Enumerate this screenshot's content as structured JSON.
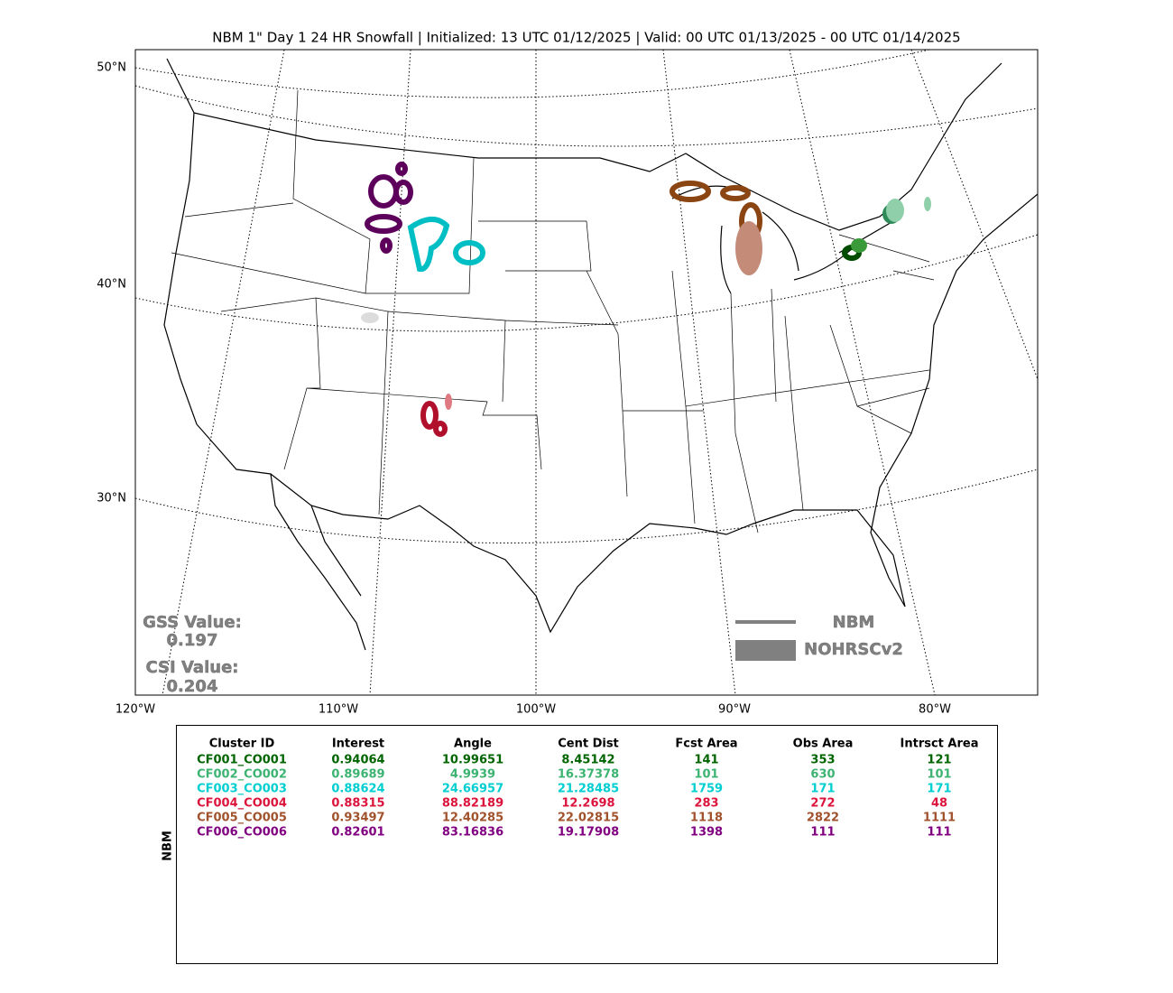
{
  "title": "NBM 1\" Day 1 24 HR Snowfall | Initialized: 13 UTC 01/12/2025 | Valid: 00 UTC 01/13/2025 - 00 UTC 01/14/2025",
  "map": {
    "lat_labels": [
      "50°N",
      "40°N",
      "30°N"
    ],
    "lon_labels": [
      "120°W",
      "110°W",
      "100°W",
      "90°W",
      "80°W"
    ],
    "scores": [
      {
        "label": "GSS Value:",
        "value": "0.197"
      },
      {
        "label": "CSI Value:",
        "value": "0.204"
      }
    ],
    "legend": [
      "NBM",
      "NOHRSCv2"
    ]
  },
  "table": {
    "side_label": "NBM",
    "columns": [
      "Cluster ID",
      "Interest",
      "Angle",
      "Cent Dist",
      "Fcst Area",
      "Obs Area",
      "Intrsct Area"
    ],
    "rows": [
      {
        "color": "#006400",
        "cells": [
          "CF001_CO001",
          "0.94064",
          "10.99651",
          "8.45142",
          "141",
          "353",
          "121"
        ]
      },
      {
        "color": "#3cb371",
        "cells": [
          "CF002_CO002",
          "0.89689",
          "4.9939",
          "16.37378",
          "101",
          "630",
          "101"
        ]
      },
      {
        "color": "#00ced1",
        "cells": [
          "CF003_CO003",
          "0.88624",
          "24.66957",
          "21.28485",
          "1759",
          "171",
          "171"
        ]
      },
      {
        "color": "#dc143c",
        "cells": [
          "CF004_CO004",
          "0.88315",
          "88.82189",
          "12.2698",
          "283",
          "272",
          "48"
        ]
      },
      {
        "color": "#a0522d",
        "cells": [
          "CF005_CO005",
          "0.93497",
          "12.40285",
          "22.02815",
          "1118",
          "2822",
          "1111"
        ]
      },
      {
        "color": "#800080",
        "cells": [
          "CF006_CO006",
          "0.82601",
          "83.16836",
          "19.17908",
          "1398",
          "111",
          "111"
        ]
      }
    ]
  }
}
